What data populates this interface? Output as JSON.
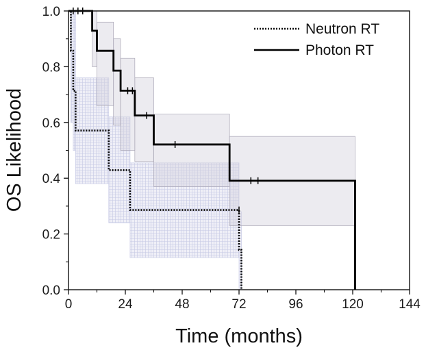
{
  "chart_data": {
    "type": "line",
    "subtype": "kaplan-meier",
    "xlabel": "Time (months)",
    "ylabel": "OS Likelihood",
    "xlim": [
      0,
      144
    ],
    "ylim": [
      0,
      1.0
    ],
    "xticks": [
      0,
      24,
      48,
      72,
      96,
      120,
      144
    ],
    "xtick_labels": [
      "0",
      "24",
      "48",
      "72",
      "96",
      "120",
      "144"
    ],
    "yticks": [
      0,
      0.2,
      0.4,
      0.6,
      0.8,
      1.0
    ],
    "ytick_labels": [
      "0.0",
      "0.2",
      "0.4",
      "0.6",
      "0.8",
      "1.0"
    ],
    "legend_position": "top-right",
    "series": [
      {
        "name": "Neutron RT",
        "style": "dotted",
        "color": "#000000",
        "band_color": "#c6c9e6",
        "steps": [
          [
            0,
            1.0
          ],
          [
            1,
            0.857
          ],
          [
            2,
            0.714
          ],
          [
            3,
            0.571
          ],
          [
            17,
            0.429
          ],
          [
            26,
            0.286
          ],
          [
            72,
            0.143
          ],
          [
            73,
            0.0
          ]
        ],
        "end": 73,
        "censored": [
          [
            72,
            0.286
          ]
        ],
        "ci": [
          [
            0,
            1.0,
            1.0
          ],
          [
            1,
            0.6,
            1.0
          ],
          [
            2,
            0.5,
            1.0
          ],
          [
            3,
            0.38,
            0.76
          ],
          [
            17,
            0.24,
            0.62
          ],
          [
            26,
            0.115,
            0.455
          ],
          [
            72,
            0.0,
            0.28
          ],
          [
            73,
            0.0,
            0.0
          ]
        ]
      },
      {
        "name": "Photon RT",
        "style": "solid",
        "color": "#000000",
        "band_color": "#d4d2dd",
        "steps": [
          [
            0,
            1.0
          ],
          [
            10,
            0.929
          ],
          [
            12,
            0.857
          ],
          [
            19,
            0.786
          ],
          [
            22,
            0.714
          ],
          [
            28,
            0.625
          ],
          [
            36,
            0.521
          ],
          [
            68,
            0.391
          ],
          [
            121,
            0.0
          ]
        ],
        "end": 121,
        "censored": [
          [
            2,
            1.0
          ],
          [
            4,
            1.0
          ],
          [
            6,
            1.0
          ],
          [
            25,
            0.714
          ],
          [
            27,
            0.714
          ],
          [
            33,
            0.625
          ],
          [
            45,
            0.521
          ],
          [
            77,
            0.391
          ],
          [
            80,
            0.391
          ]
        ],
        "ci": [
          [
            0,
            1.0,
            1.0
          ],
          [
            10,
            0.8,
            1.0
          ],
          [
            12,
            0.66,
            0.96
          ],
          [
            19,
            0.59,
            0.9
          ],
          [
            22,
            0.5,
            0.83
          ],
          [
            28,
            0.46,
            0.76
          ],
          [
            36,
            0.37,
            0.63
          ],
          [
            68,
            0.23,
            0.55
          ],
          [
            121,
            0.23,
            0.55
          ]
        ]
      }
    ]
  }
}
